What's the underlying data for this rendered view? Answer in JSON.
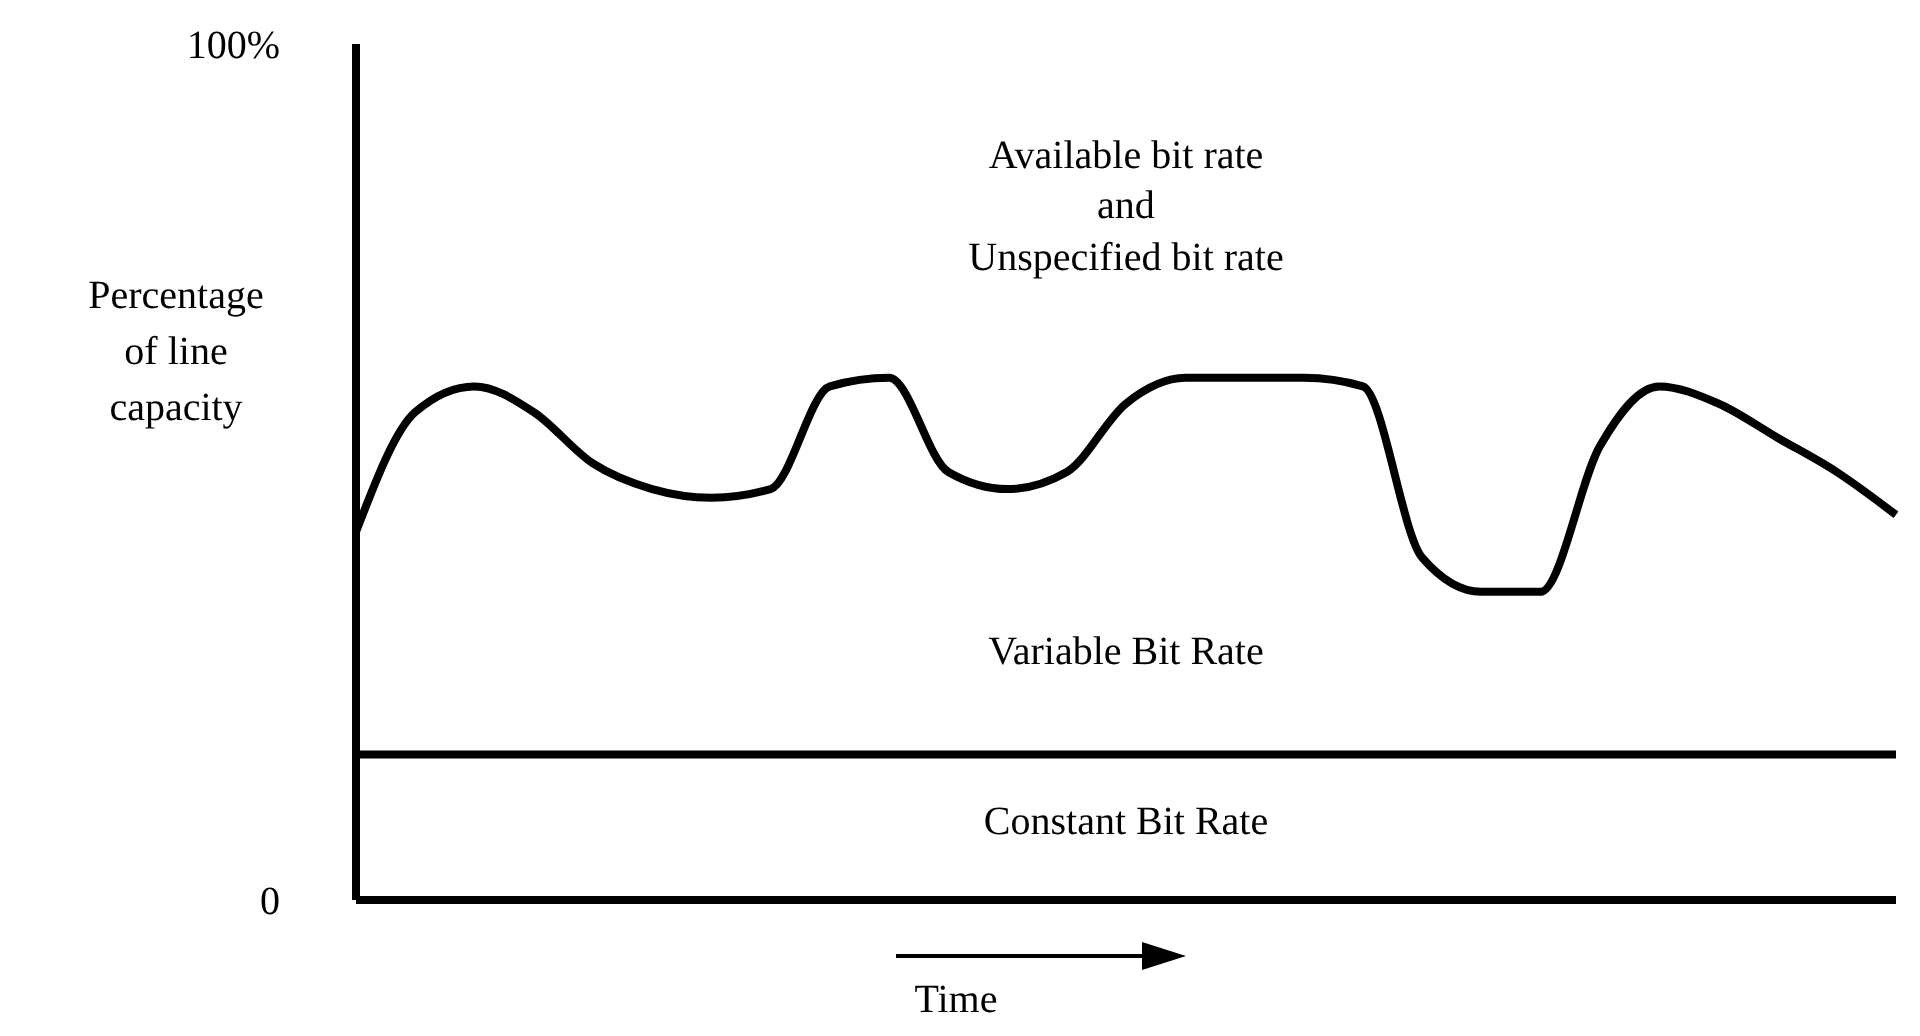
{
  "chart_data": {
    "type": "line",
    "ylabel": "Percentage of line capacity",
    "xlabel": "Time",
    "categories": [
      null,
      null,
      null,
      null,
      null,
      null,
      null,
      null,
      null,
      null,
      null,
      null,
      null,
      null,
      null,
      null,
      null,
      null,
      null,
      null,
      null,
      null,
      null,
      null,
      null,
      null,
      null
    ],
    "series": [
      {
        "color": "#000000",
        "values": [
          43,
          57,
          60,
          57,
          51,
          48,
          47,
          48,
          60,
          61,
          50,
          48,
          50,
          58,
          61,
          61,
          61,
          60,
          40,
          36,
          36,
          53,
          60,
          58,
          54,
          50,
          45
        ]
      },
      {
        "color": "#000000",
        "values": [
          17,
          17,
          17,
          17,
          17,
          17,
          17,
          17,
          17,
          17,
          17,
          17,
          17,
          17,
          17,
          17,
          17,
          17,
          17,
          17,
          17,
          17,
          17,
          17,
          17,
          17,
          17
        ]
      }
    ],
    "ylim": [
      0,
      100
    ],
    "yticks": [
      0,
      {
        "value": 100,
        "label": "100%"
      }
    ],
    "annotations": [
      "Available bit rate",
      "and",
      "Unspecified bit rate",
      "Variable Bit Rate",
      "Constant Bit Rate"
    ],
    "grid": false,
    "legend": false,
    "marker": "none",
    "line_style": "solid"
  }
}
